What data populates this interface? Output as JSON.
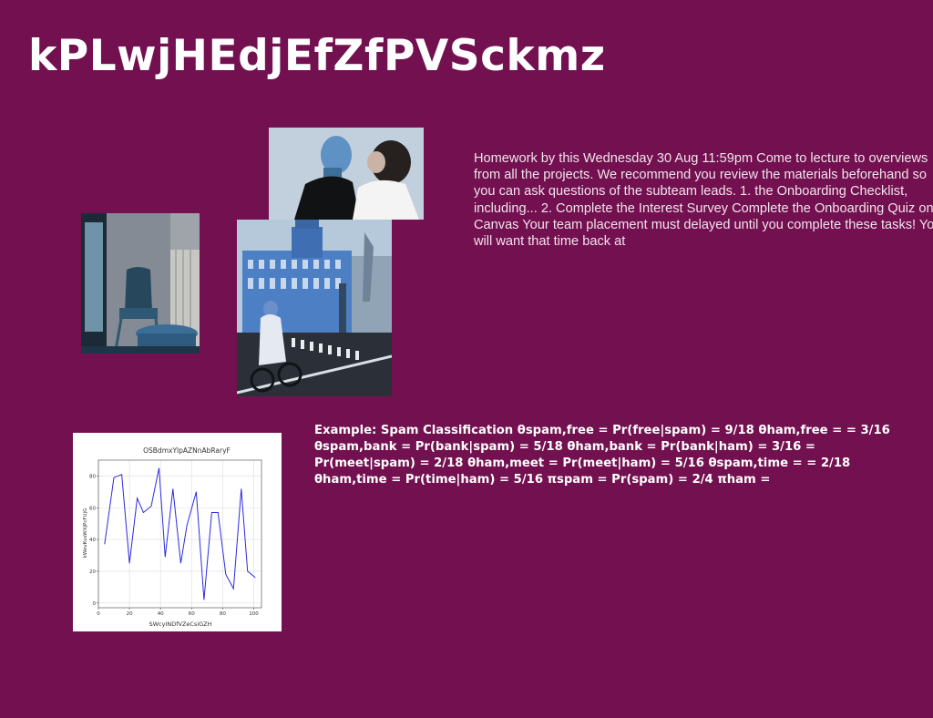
{
  "page": {
    "title": "kPLwjHEdjEfZfPVSckmz",
    "paragraph": "Homework by this Wednesday 30 Aug 11:59pm Come to lecture to overviews from all the projects. We recommend you review the materials beforehand so you can ask questions of the subteam leads. 1. the Onboarding Checklist, including... 2. Complete the Interest Survey Complete the Onboarding Quiz on Canvas Your team placement must delayed until you complete these tasks! You will want that time back at",
    "example": "Example: Spam Classification θspam,free = Pr(free|spam) = 9/18 θham,free = = 3/16 θspam,bank = Pr(bank|spam) = 5/18 θham,bank = Pr(bank|ham) = 3/16 = Pr(meet|spam) = 2/18 θham,meet = Pr(meet|ham) = 5/16 θspam,time = = 2/18 θham,time = Pr(time|ham) = 5/16 πspam = Pr(spam) = 2/4 πham ="
  },
  "images": {
    "photo_kiss": "photo of two people kissing",
    "photo_chair": "photo of a blue chair and table by a window",
    "photo_palace": "photo of a palace with a cyclist"
  },
  "chart_data": {
    "type": "line",
    "title": "OSBdmxYlpAZNnAbRaryF",
    "xlabel": "SWcyINDfVZeCsiGZH",
    "ylabel": "kWevKvsWXjPcFUjG",
    "x": [
      4,
      10,
      15,
      20,
      25,
      29,
      34,
      39,
      43,
      48,
      53,
      57,
      63,
      68,
      73,
      77,
      82,
      87,
      92,
      96,
      101
    ],
    "values": [
      37,
      79,
      81,
      25,
      66,
      57,
      61,
      85,
      29,
      72,
      25,
      49,
      70,
      2,
      57,
      57,
      18,
      9,
      72,
      20,
      16
    ],
    "xlim": [
      0,
      105
    ],
    "ylim": [
      -3,
      90
    ],
    "xticks": [
      0,
      20,
      40,
      60,
      80,
      100
    ],
    "yticks": [
      0,
      20,
      40,
      60,
      80
    ],
    "grid": true,
    "line_color": "#2b2be0"
  },
  "colors": {
    "background": "#731050",
    "text": "#ffffff"
  }
}
